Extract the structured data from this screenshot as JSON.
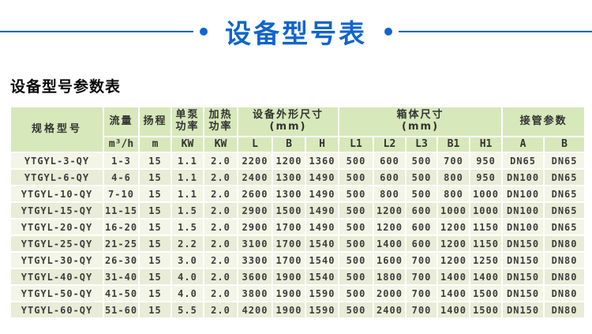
{
  "banner": {
    "title": "设备型号表",
    "accent_color": "#1065cc"
  },
  "section_title": "设备型号参数表",
  "table": {
    "header": {
      "model": "规格型号",
      "cols_top": [
        {
          "label": "流量",
          "unit": "m³/h"
        },
        {
          "label": "扬程",
          "unit": "m"
        },
        {
          "label": "单泵\n功率",
          "unit": "KW"
        },
        {
          "label": "加热\n功率",
          "unit": "KW"
        }
      ],
      "groups": [
        {
          "label": "设备外形尺寸\n(mm)",
          "subs": [
            "L",
            "B",
            "H"
          ]
        },
        {
          "label": "箱体尺寸\n(mm)",
          "subs": [
            "L1",
            "L2",
            "L3",
            "B1",
            "H1"
          ]
        },
        {
          "label": "接管参数",
          "subs": [
            "A",
            "B"
          ]
        }
      ]
    },
    "rows": [
      [
        "YTGYL-3-QY",
        "1-3",
        "15",
        "1.1",
        "2.0",
        "2200",
        "1200",
        "1360",
        "500",
        "600",
        "500",
        "700",
        "950",
        "DN65",
        "DN65"
      ],
      [
        "YTGYL-6-QY",
        "4-6",
        "15",
        "1.1",
        "2.0",
        "2400",
        "1300",
        "1490",
        "500",
        "600",
        "500",
        "800",
        "950",
        "DN100",
        "DN65"
      ],
      [
        "YTGYL-10-QY",
        "7-10",
        "15",
        "1.1",
        "2.0",
        "2600",
        "1300",
        "1490",
        "500",
        "800",
        "500",
        "800",
        "1000",
        "DN100",
        "DN65"
      ],
      [
        "YTGYL-15-QY",
        "11-15",
        "15",
        "1.5",
        "2.0",
        "2900",
        "1500",
        "1490",
        "500",
        "1200",
        "600",
        "1000",
        "1000",
        "DN100",
        "DN65"
      ],
      [
        "YTGYL-20-QY",
        "16-20",
        "15",
        "1.5",
        "2.0",
        "2900",
        "1700",
        "1490",
        "500",
        "1200",
        "600",
        "1200",
        "1150",
        "DN100",
        "DN65"
      ],
      [
        "YTGYL-25-QY",
        "21-25",
        "15",
        "2.2",
        "2.0",
        "3100",
        "1700",
        "1540",
        "500",
        "1400",
        "600",
        "1200",
        "1150",
        "DN150",
        "DN80"
      ],
      [
        "YTGYL-30-QY",
        "26-30",
        "15",
        "3.0",
        "2.0",
        "3300",
        "1700",
        "1540",
        "500",
        "1600",
        "700",
        "1200",
        "1250",
        "DN150",
        "DN80"
      ],
      [
        "YTGYL-40-QY",
        "31-40",
        "15",
        "4.0",
        "2.0",
        "3600",
        "1900",
        "1540",
        "500",
        "1800",
        "700",
        "1400",
        "1400",
        "DN150",
        "DN80"
      ],
      [
        "YTGYL-50-QY",
        "41-50",
        "15",
        "4.0",
        "2.0",
        "3800",
        "1900",
        "1590",
        "500",
        "2000",
        "700",
        "1400",
        "1500",
        "DN150",
        "DN80"
      ],
      [
        "YTGYL-60-QY",
        "51-60",
        "15",
        "5.5",
        "2.0",
        "4200",
        "1900",
        "1590",
        "500",
        "2400",
        "700",
        "1400",
        "1500",
        "DN150",
        "DN80"
      ]
    ]
  }
}
